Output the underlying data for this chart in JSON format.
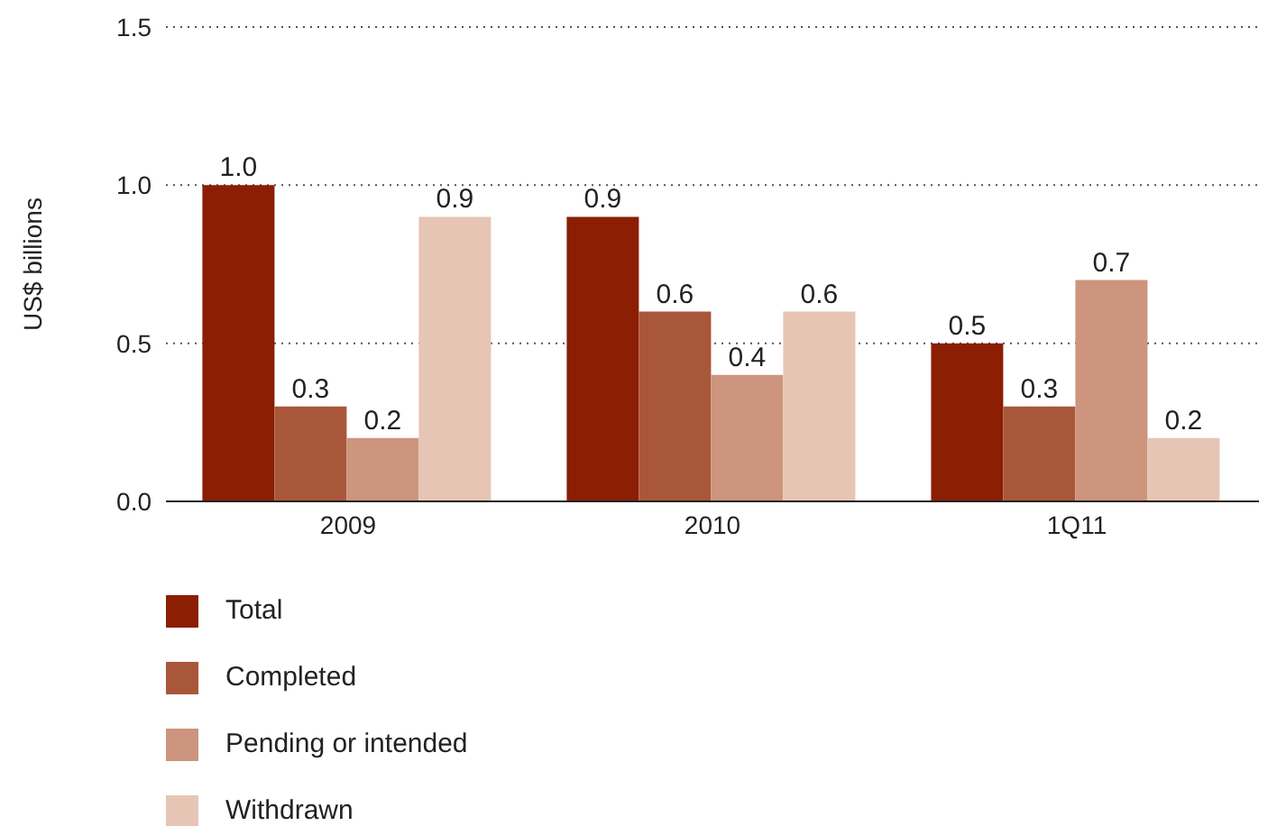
{
  "chart_data": {
    "type": "bar",
    "ylabel": "US$ billions",
    "categories": [
      "2009",
      "2010",
      "1Q11"
    ],
    "series": [
      {
        "name": "Total",
        "color": "#8b1e03",
        "values": [
          1.0,
          0.9,
          0.5
        ],
        "value_labels": [
          "1.0",
          "0.9",
          "0.5"
        ]
      },
      {
        "name": "Completed",
        "color": "#a9573a",
        "values": [
          0.3,
          0.6,
          0.3
        ],
        "value_labels": [
          "0.3",
          "0.6",
          "0.3"
        ]
      },
      {
        "name": "Pending or intended",
        "color": "#cd957d",
        "values": [
          0.2,
          0.4,
          0.7
        ],
        "value_labels": [
          "0.2",
          "0.4",
          "0.7"
        ]
      },
      {
        "name": "Withdrawn",
        "color": "#e6c5b5",
        "values": [
          0.9,
          0.6,
          0.2
        ],
        "value_labels": [
          "0.9",
          "0.6",
          "0.2"
        ]
      }
    ],
    "ylim": [
      0,
      1.5
    ],
    "yticks": [
      {
        "value": 0,
        "label": "0.0"
      },
      0.5,
      {
        "value": 1,
        "label": "1.0"
      },
      1.5
    ],
    "grid": "y",
    "legend": "bottom"
  }
}
